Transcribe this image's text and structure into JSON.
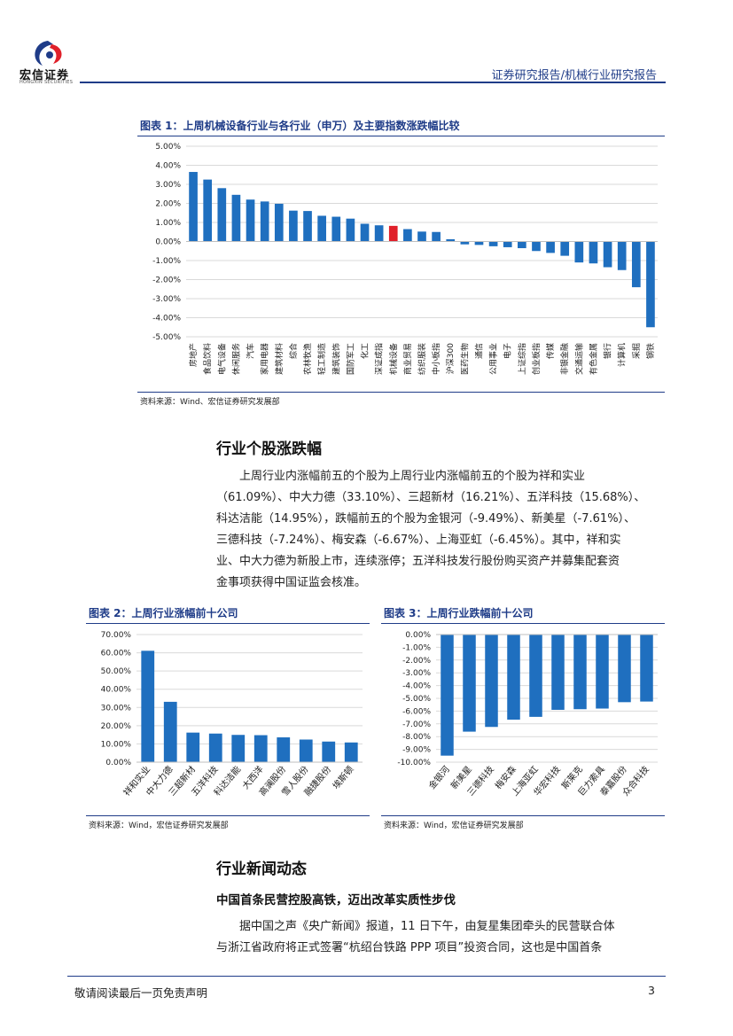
{
  "header": {
    "logo_text": "宏信证券",
    "logo_sub": "HONGXIN SECURITIES",
    "title": "证券研究报告/机械行业研究报告"
  },
  "figure1": {
    "title": "图表 1：上周机械设备行业与各行业（申万）及主要指数涨跌幅比较",
    "source": "资料来源：Wind、宏信证券研究发展部"
  },
  "figure2": {
    "title": "图表 2：上周行业涨幅前十公司",
    "source": "资料来源：Wind，宏信证券研究发展部"
  },
  "figure3": {
    "title": "图表 3：上周行业跌幅前十公司",
    "source": "资料来源：Wind，宏信证券研究发展部"
  },
  "section1": {
    "heading": "行业个股涨跌幅",
    "lines": [
      "上周行业内涨幅前五的个股为上周行业内涨幅前五的个股为祥和实业",
      "（61.09%）、中大力德（33.10%）、三超新材（16.21%）、五洋科技（15.68%）、",
      "科达洁能（14.95%），跌幅前五的个股为金银河（-9.49%）、新美星（-7.61%）、",
      "三德科技（-7.24%）、梅安森（-6.67%）、上海亚虹（-6.45%）。其中，祥和实",
      "业、中大力德为新股上市，连续涨停；五洋科技发行股份购买资产并募集配套资",
      "金事项获得中国证监会核准。"
    ]
  },
  "section2": {
    "heading": "行业新闻动态",
    "subheading": "中国首条民营控股高铁，迈出改革实质性步伐",
    "lines": [
      "据中国之声《央广新闻》报道，11 日下午，由复星集团牵头的民营联合体",
      "与浙江省政府将正式签署“杭绍台铁路 PPP 项目”投资合同，这也是中国首条"
    ]
  },
  "footer": {
    "disclaimer": "敬请阅读最后一页免责声明",
    "page": "3"
  },
  "colors": {
    "bar": "#1f6fbf",
    "highlight": "#e0202a",
    "brand": "#1f3c88"
  },
  "chart_data": [
    {
      "type": "bar",
      "title": "图表 1：上周机械设备行业与各行业（申万）及主要指数涨跌幅比较",
      "categories": [
        "房地产",
        "食品饮料",
        "电气设备",
        "休闲服务",
        "汽车",
        "家用电器",
        "建筑材料",
        "综合",
        "农林牧渔",
        "轻工制造",
        "建筑装饰",
        "国防军工",
        "化工",
        "深证成指",
        "机械设备",
        "商业贸易",
        "纺织服装",
        "中小板指",
        "沪深300",
        "医药生物",
        "通信",
        "公用事业",
        "电子",
        "上证综指",
        "创业板指",
        "传媒",
        "非银金融",
        "交通运输",
        "有色金属",
        "银行",
        "计算机",
        "采掘",
        "钢铁"
      ],
      "values": [
        3.65,
        3.25,
        2.8,
        2.45,
        2.2,
        2.1,
        1.98,
        1.62,
        1.6,
        1.35,
        1.3,
        1.2,
        0.93,
        0.85,
        0.82,
        0.65,
        0.52,
        0.5,
        0.12,
        -0.15,
        -0.18,
        -0.25,
        -0.3,
        -0.35,
        -0.5,
        -0.6,
        -0.75,
        -1.1,
        -1.15,
        -1.35,
        -1.5,
        -2.4,
        -4.5
      ],
      "highlight": "机械设备",
      "ylim": [
        -5,
        5
      ],
      "yticks": [
        "5.00%",
        "4.00%",
        "3.00%",
        "2.00%",
        "1.00%",
        "0.00%",
        "-1.00%",
        "-2.00%",
        "-3.00%",
        "-4.00%",
        "-5.00%"
      ],
      "grid": true
    },
    {
      "type": "bar",
      "title": "图表 2：上周行业涨幅前十公司",
      "categories": [
        "祥和实业",
        "中大力德",
        "三超新材",
        "五洋科技",
        "科达洁能",
        "大西洋",
        "高澜股份",
        "雪人股份",
        "融捷股份",
        "埃斯顿"
      ],
      "values": [
        61.09,
        33.1,
        16.21,
        15.68,
        14.95,
        14.8,
        13.6,
        12.4,
        11.3,
        10.8
      ],
      "ylim": [
        0,
        70
      ],
      "yticks": [
        "70.00%",
        "60.00%",
        "50.00%",
        "40.00%",
        "30.00%",
        "20.00%",
        "10.00%",
        "0.00%"
      ],
      "grid": true
    },
    {
      "type": "bar",
      "title": "图表 3：上周行业跌幅前十公司",
      "categories": [
        "金银河",
        "新美星",
        "三德科技",
        "梅安森",
        "上海亚虹",
        "华宏科技",
        "斯莱克",
        "巨力索具",
        "泰嘉股份",
        "众合科技"
      ],
      "values": [
        -9.49,
        -7.61,
        -7.24,
        -6.67,
        -6.45,
        -5.9,
        -5.85,
        -5.8,
        -5.3,
        -5.25
      ],
      "ylim": [
        -10,
        0
      ],
      "yticks": [
        "0.00%",
        "-1.00%",
        "-2.00%",
        "-3.00%",
        "-4.00%",
        "-5.00%",
        "-6.00%",
        "-7.00%",
        "-8.00%",
        "-9.00%",
        "-10.00%"
      ],
      "grid": true
    }
  ]
}
